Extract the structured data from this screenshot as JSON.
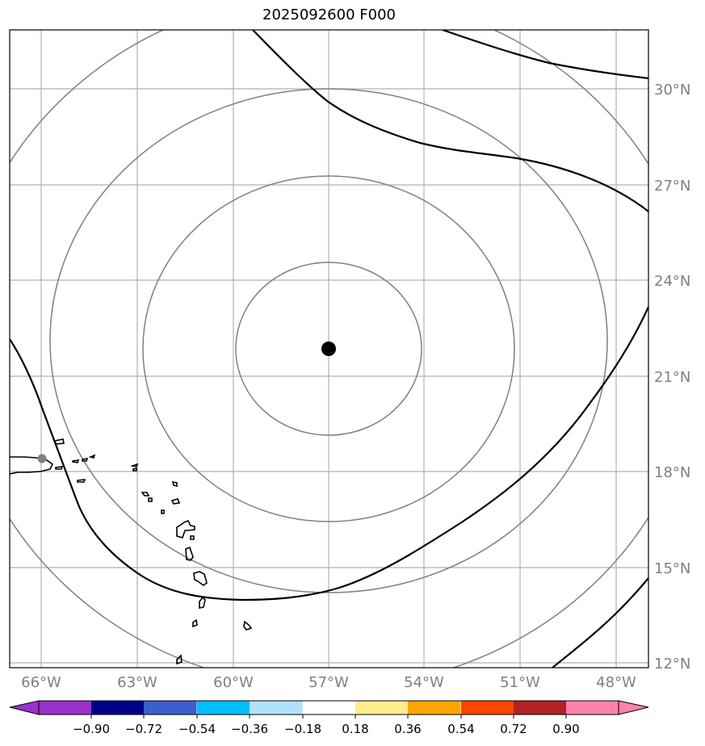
{
  "title": "2025092600 F000",
  "map": {
    "region": "Western Atlantic / Lesser Antilles",
    "lon_labels": [
      "66°W",
      "63°W",
      "60°W",
      "57°W",
      "54°W",
      "51°W",
      "48°W"
    ],
    "lat_labels": [
      "30°N",
      "27°N",
      "24°N",
      "21°N",
      "18°N",
      "15°N",
      "12°N"
    ],
    "grid": true,
    "center_marker": {
      "lon": -57.0,
      "lat": 21.9,
      "color": "#000000"
    },
    "station_marker": {
      "lon": -66.0,
      "lat": 18.4,
      "color": "#808080"
    },
    "range_rings_color": "#808080",
    "contour_color": "#000000",
    "coastline_color": "#000000"
  },
  "colorbar": {
    "colors": [
      "#9932CC",
      "#00008B",
      "#3A5FCD",
      "#00BFFF",
      "#B0E2FF",
      "#FFFFFF",
      "#FFEC8B",
      "#FFA500",
      "#FF4500",
      "#B22222",
      "#FF82AB"
    ],
    "tick_labels": [
      "−0.90",
      "−0.72",
      "−0.54",
      "−0.36",
      "−0.18",
      "0.18",
      "0.36",
      "0.54",
      "0.72",
      "0.90"
    ]
  }
}
